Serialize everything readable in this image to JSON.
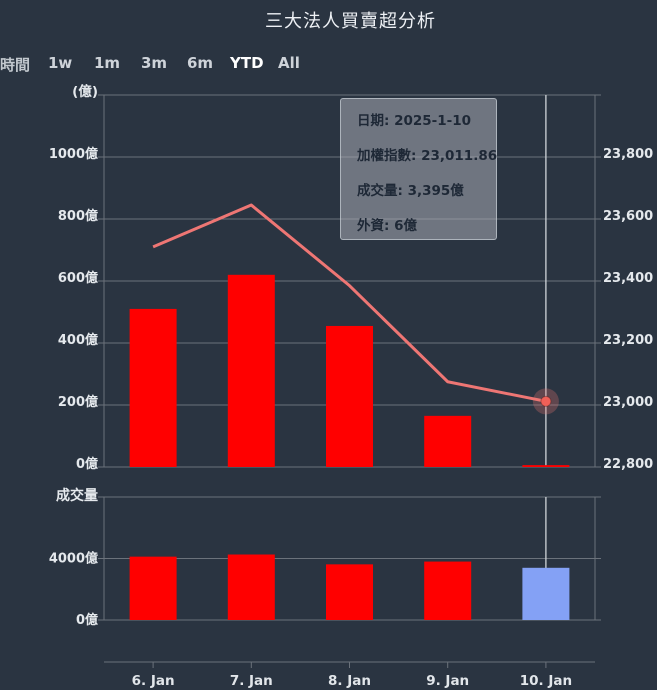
{
  "title": "三大法人買賣超分析",
  "range_selector": {
    "label": "時間",
    "buttons": [
      {
        "label": "1w",
        "selected": false
      },
      {
        "label": "1m",
        "selected": false
      },
      {
        "label": "3m",
        "selected": false
      },
      {
        "label": "6m",
        "selected": false
      },
      {
        "label": "YTD",
        "selected": true
      },
      {
        "label": "All",
        "selected": false
      }
    ]
  },
  "tooltip": {
    "rows": [
      {
        "label": "日期",
        "value": "2025-1-10"
      },
      {
        "label": "加權指數",
        "value": "23,011.86"
      },
      {
        "label": "成交量",
        "value": "3,395億"
      },
      {
        "label": "外資",
        "value": "6億"
      }
    ]
  },
  "colors": {
    "background": "#2a3441",
    "grid": "#6b727b",
    "axis_text": "#e5e9ed",
    "bar_red": "#ff0000",
    "bar_blue": "#84a1f5",
    "index_line": "#ee7674",
    "marker_fill": "#ef6058",
    "crosshair": "#cfd4d9",
    "tooltip_bg": "rgba(167,172,180,0.55)",
    "tooltip_text": "#1e2836"
  },
  "chart_data": [
    {
      "type": "bar",
      "panel": "price",
      "categories": [
        "6. Jan",
        "7. Jan",
        "8. Jan",
        "9. Jan",
        "10. Jan"
      ],
      "series": [
        {
          "name": "外資買賣超",
          "type": "bar",
          "unit": "億",
          "values": [
            510,
            620,
            455,
            165,
            6
          ]
        },
        {
          "name": "加權指數",
          "type": "line",
          "values": [
            23510,
            23645,
            23385,
            23075,
            23011.86
          ]
        }
      ],
      "left_axis": {
        "title": "(億)",
        "tick_labels": [
          "1000億",
          "800億",
          "600億",
          "400億",
          "200億",
          "0億"
        ],
        "tick_values": [
          1000,
          800,
          600,
          400,
          200,
          0
        ],
        "min": 0,
        "max": 1200,
        "grid": true
      },
      "right_axis": {
        "tick_labels": [
          "23,800",
          "23,600",
          "23,400",
          "23,200",
          "23,000",
          "22,800"
        ],
        "tick_values": [
          23800,
          23600,
          23400,
          23200,
          23000,
          22800
        ],
        "min": 22800,
        "max": 24000
      },
      "hovered_point": {
        "category": "10. Jan",
        "series": "加權指數",
        "value": 23011.86
      }
    },
    {
      "type": "bar",
      "panel": "volume",
      "axis_title": "成交量",
      "categories": [
        "6. Jan",
        "7. Jan",
        "8. Jan",
        "9. Jan",
        "10. Jan"
      ],
      "values": [
        4120,
        4260,
        3620,
        3800,
        3395
      ],
      "bar_colors": [
        "#ff0000",
        "#ff0000",
        "#ff0000",
        "#ff0000",
        "#84a1f5"
      ],
      "left_axis": {
        "tick_labels": [
          "4000億",
          "0億"
        ],
        "tick_values": [
          4000,
          0
        ],
        "min": 0,
        "max": 8000,
        "grid": true
      }
    }
  ]
}
